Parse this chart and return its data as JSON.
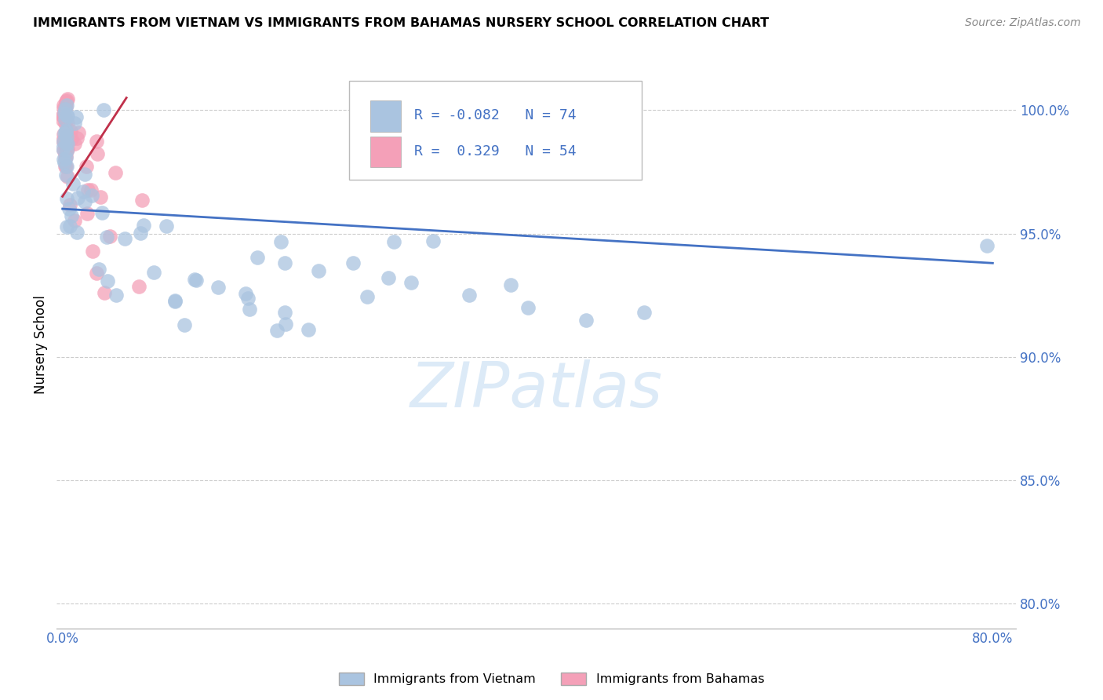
{
  "title": "IMMIGRANTS FROM VIETNAM VS IMMIGRANTS FROM BAHAMAS NURSERY SCHOOL CORRELATION CHART",
  "source": "Source: ZipAtlas.com",
  "ylabel": "Nursery School",
  "yticks": [
    80.0,
    85.0,
    90.0,
    95.0,
    100.0
  ],
  "ytick_labels": [
    "80.0%",
    "85.0%",
    "90.0%",
    "95.0%",
    "100.0%"
  ],
  "xtick_labels": [
    "0.0%",
    "80.0%"
  ],
  "legend_vietnam": "Immigrants from Vietnam",
  "legend_bahamas": "Immigrants from Bahamas",
  "r_vietnam": -0.082,
  "n_vietnam": 74,
  "r_bahamas": 0.329,
  "n_bahamas": 54,
  "color_vietnam": "#aac4e0",
  "color_bahamas": "#f4a0b8",
  "line_color_vietnam": "#4472c4",
  "line_color_bahamas": "#c0304a",
  "watermark_color": "#dceaf7",
  "grid_color": "#cccccc",
  "tick_color": "#4472c4",
  "viet_line_x": [
    0,
    80
  ],
  "viet_line_y": [
    96.0,
    93.8
  ],
  "bah_line_x": [
    0.0,
    5.5
  ],
  "bah_line_y": [
    96.5,
    100.5
  ],
  "xlim": [
    -0.5,
    82
  ],
  "ylim": [
    79.0,
    102.0
  ]
}
